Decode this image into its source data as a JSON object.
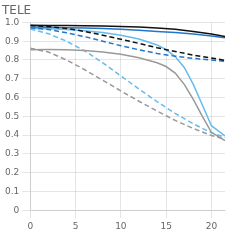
{
  "chart_data": {
    "type": "line",
    "title": "TELE",
    "xlim": [
      0,
      21.5
    ],
    "xticks": [
      0,
      5,
      10,
      15,
      20
    ],
    "ylim": [
      0,
      1.0
    ],
    "yticks": [
      0,
      0.1,
      0.2,
      0.3,
      0.4,
      0.5,
      0.6,
      0.7,
      0.8,
      0.9,
      {
        "value": 1.0,
        "label": "1.0"
      }
    ],
    "grid": true,
    "series": [
      {
        "color": "#111111",
        "line_style": "solid",
        "x": [
          0,
          2,
          4,
          6,
          8,
          10,
          12,
          14,
          16,
          18,
          20,
          21.5
        ],
        "values": [
          0.985,
          0.984,
          0.983,
          0.982,
          0.981,
          0.978,
          0.975,
          0.97,
          0.963,
          0.952,
          0.938,
          0.925
        ]
      },
      {
        "color": "#111111",
        "line_style": "dashed",
        "x": [
          0,
          2,
          4,
          6,
          8,
          10,
          12,
          14,
          16,
          18,
          20,
          21.5
        ],
        "values": [
          0.983,
          0.978,
          0.968,
          0.952,
          0.932,
          0.91,
          0.888,
          0.865,
          0.845,
          0.826,
          0.81,
          0.798
        ]
      },
      {
        "color": "#2277cc",
        "line_style": "solid",
        "x": [
          0,
          2,
          4,
          6,
          8,
          10,
          12,
          14,
          16,
          18,
          20,
          21.5
        ],
        "values": [
          0.975,
          0.974,
          0.972,
          0.97,
          0.967,
          0.963,
          0.958,
          0.952,
          0.946,
          0.938,
          0.928,
          0.918
        ]
      },
      {
        "color": "#2277cc",
        "line_style": "dashed",
        "x": [
          0,
          2,
          4,
          6,
          8,
          10,
          12,
          14,
          16,
          18,
          20,
          21.5
        ],
        "values": [
          0.972,
          0.962,
          0.945,
          0.924,
          0.9,
          0.876,
          0.854,
          0.835,
          0.82,
          0.808,
          0.8,
          0.793
        ]
      },
      {
        "color": "#999999",
        "line_style": "solid",
        "x": [
          0,
          2,
          4,
          6,
          8,
          10,
          12,
          14,
          15,
          16,
          17,
          18,
          19,
          20,
          21.5
        ],
        "values": [
          0.855,
          0.856,
          0.855,
          0.85,
          0.842,
          0.83,
          0.812,
          0.785,
          0.765,
          0.73,
          0.67,
          0.59,
          0.5,
          0.415,
          0.37
        ]
      },
      {
        "color": "#999999",
        "line_style": "dashed",
        "x": [
          0,
          2,
          4,
          6,
          8,
          10,
          12,
          14,
          16,
          18,
          20,
          21.5
        ],
        "values": [
          0.862,
          0.842,
          0.8,
          0.748,
          0.692,
          0.635,
          0.58,
          0.528,
          0.478,
          0.435,
          0.398,
          0.378
        ]
      },
      {
        "color": "#66bbee",
        "line_style": "solid",
        "x": [
          0,
          2,
          4,
          6,
          8,
          10,
          12,
          14,
          15,
          16,
          17,
          18,
          19,
          20,
          21.5
        ],
        "values": [
          0.968,
          0.966,
          0.962,
          0.956,
          0.946,
          0.932,
          0.912,
          0.88,
          0.855,
          0.818,
          0.76,
          0.67,
          0.56,
          0.45,
          0.395
        ]
      },
      {
        "color": "#66bbee",
        "line_style": "dashed",
        "x": [
          0,
          2,
          4,
          6,
          8,
          10,
          12,
          14,
          16,
          18,
          20,
          21.5
        ],
        "values": [
          0.965,
          0.94,
          0.9,
          0.848,
          0.785,
          0.715,
          0.645,
          0.578,
          0.515,
          0.46,
          0.412,
          0.388
        ]
      }
    ]
  }
}
